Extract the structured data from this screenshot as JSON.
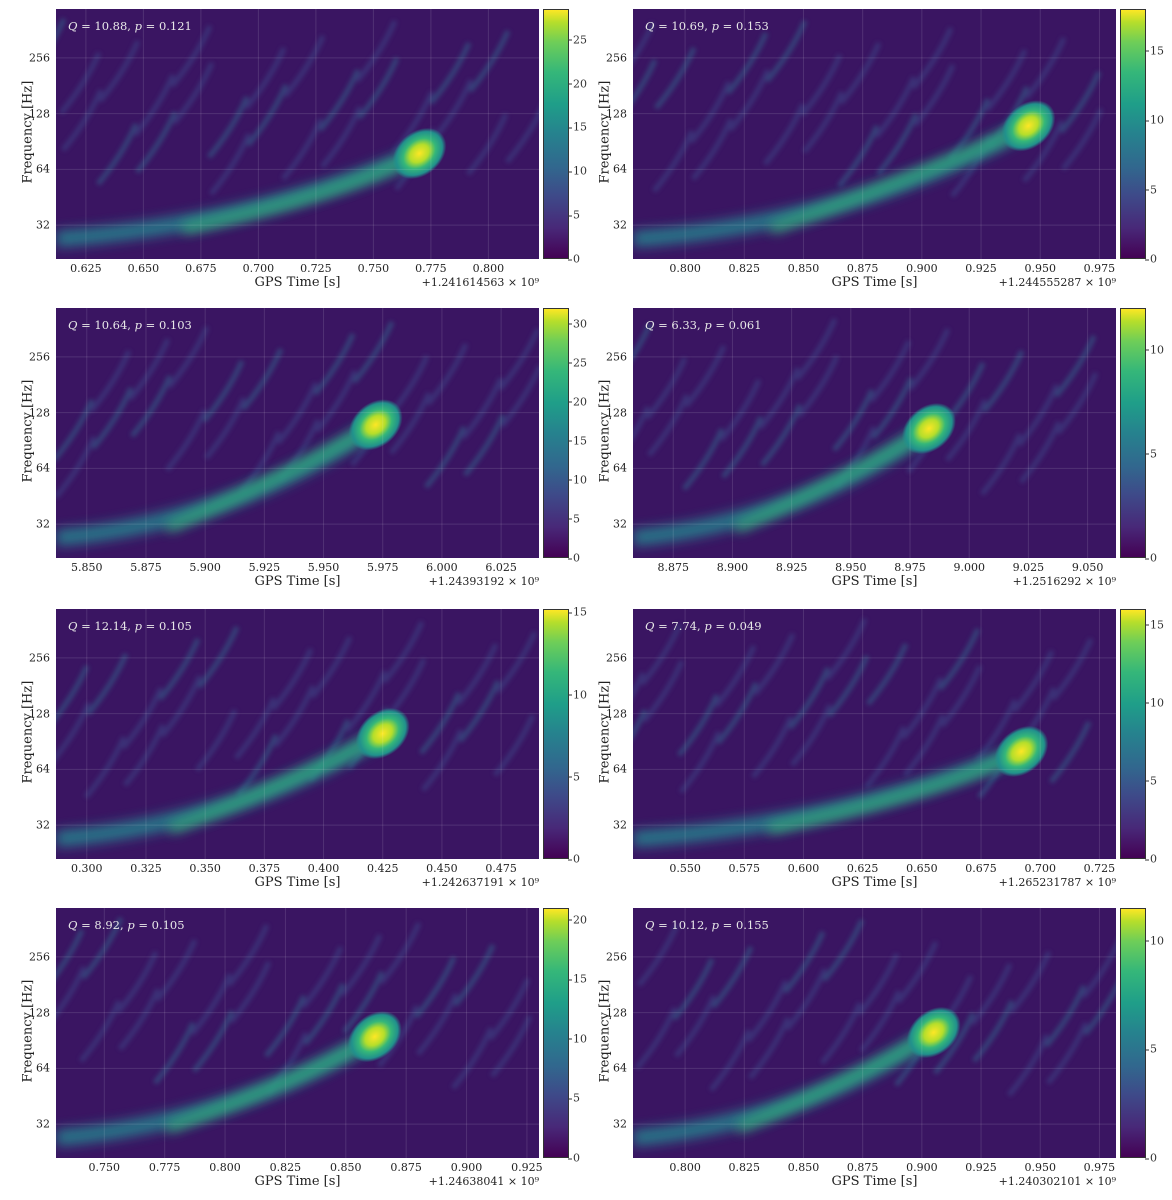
{
  "chart_data": [
    {
      "type": "heatmap",
      "annotation": {
        "Q": "10.88",
        "p": "0.121"
      },
      "xlabel": "GPS Time [s]",
      "ylabel": "Frequency [Hz]",
      "x_ticks": [
        "0.625",
        "0.650",
        "0.675",
        "0.700",
        "0.725",
        "0.750",
        "0.775",
        "0.800"
      ],
      "x_offset": "+1.241614563 × 10⁹",
      "y_ticks": [
        "256",
        "128",
        "64",
        "32"
      ],
      "xlim": [
        0.612,
        0.822
      ],
      "colorbar_ticks": [
        "0",
        "5",
        "10",
        "15",
        "20",
        "25"
      ],
      "colorbar_max": 28.5,
      "chirp": {
        "t_peak": 0.77,
        "f_peak": 78,
        "peak_value": 28
      },
      "grid": true
    },
    {
      "type": "heatmap",
      "annotation": {
        "Q": "10.69",
        "p": "0.153"
      },
      "xlabel": "GPS Time [s]",
      "ylabel": "Frequency [Hz]",
      "x_ticks": [
        "0.800",
        "0.825",
        "0.850",
        "0.875",
        "0.900",
        "0.925",
        "0.950",
        "0.975"
      ],
      "x_offset": "+1.244555287 × 10⁹",
      "y_ticks": [
        "256",
        "128",
        "64",
        "32"
      ],
      "xlim": [
        0.778,
        0.982
      ],
      "colorbar_ticks": [
        "0",
        "5",
        "10",
        "15"
      ],
      "colorbar_max": 18,
      "chirp": {
        "t_peak": 0.945,
        "f_peak": 110,
        "peak_value": 18
      },
      "grid": true
    },
    {
      "type": "heatmap",
      "annotation": {
        "Q": "10.64",
        "p": "0.103"
      },
      "xlabel": "GPS Time [s]",
      "ylabel": "Frequency [Hz]",
      "x_ticks": [
        "5.850",
        "5.875",
        "5.900",
        "5.925",
        "5.950",
        "5.975",
        "6.000",
        "6.025"
      ],
      "x_offset": "+1.24393192 × 10⁹",
      "y_ticks": [
        "256",
        "128",
        "64",
        "32"
      ],
      "xlim": [
        5.837,
        6.041
      ],
      "colorbar_ticks": [
        "0",
        "5",
        "10",
        "15",
        "20",
        "25",
        "30"
      ],
      "colorbar_max": 32,
      "chirp": {
        "t_peak": 5.972,
        "f_peak": 110,
        "peak_value": 32
      },
      "grid": true
    },
    {
      "type": "heatmap",
      "annotation": {
        "Q": "6.33",
        "p": "0.061"
      },
      "xlabel": "GPS Time [s]",
      "ylabel": "Frequency [Hz]",
      "x_ticks": [
        "8.875",
        "8.900",
        "8.925",
        "8.950",
        "8.975",
        "9.000",
        "9.025",
        "9.050"
      ],
      "x_offset": "+1.2516292 × 10⁹",
      "y_ticks": [
        "256",
        "128",
        "64",
        "32"
      ],
      "xlim": [
        8.858,
        9.062
      ],
      "colorbar_ticks": [
        "0",
        "5",
        "10"
      ],
      "colorbar_max": 12,
      "chirp": {
        "t_peak": 8.983,
        "f_peak": 105,
        "peak_value": 12
      },
      "grid": true
    },
    {
      "type": "heatmap",
      "annotation": {
        "Q": "12.14",
        "p": "0.105"
      },
      "xlabel": "GPS Time [s]",
      "ylabel": "Frequency [Hz]",
      "x_ticks": [
        "0.300",
        "0.325",
        "0.350",
        "0.375",
        "0.400",
        "0.425",
        "0.450",
        "0.475"
      ],
      "x_offset": "+1.242637191 × 10⁹",
      "y_ticks": [
        "256",
        "128",
        "64",
        "32"
      ],
      "xlim": [
        0.287,
        0.491
      ],
      "colorbar_ticks": [
        "0",
        "5",
        "10",
        "15"
      ],
      "colorbar_max": 15.2,
      "chirp": {
        "t_peak": 0.425,
        "f_peak": 100,
        "peak_value": 15
      },
      "grid": true
    },
    {
      "type": "heatmap",
      "annotation": {
        "Q": "7.74",
        "p": "0.049"
      },
      "xlabel": "GPS Time [s]",
      "ylabel": "Frequency [Hz]",
      "x_ticks": [
        "0.550",
        "0.575",
        "0.600",
        "0.625",
        "0.650",
        "0.675",
        "0.700",
        "0.725"
      ],
      "x_offset": "+1.265231787 × 10⁹",
      "y_ticks": [
        "256",
        "128",
        "64",
        "32"
      ],
      "xlim": [
        0.528,
        0.732
      ],
      "colorbar_ticks": [
        "0",
        "5",
        "10",
        "15"
      ],
      "colorbar_max": 16,
      "chirp": {
        "t_peak": 0.692,
        "f_peak": 80,
        "peak_value": 16
      },
      "grid": true
    },
    {
      "type": "heatmap",
      "annotation": {
        "Q": "8.92",
        "p": "0.105"
      },
      "xlabel": "GPS Time [s]",
      "ylabel": "Frequency [Hz]",
      "x_ticks": [
        "0.750",
        "0.775",
        "0.800",
        "0.825",
        "0.850",
        "0.875",
        "0.900",
        "0.925"
      ],
      "x_offset": "+1.24638041 × 10⁹",
      "y_ticks": [
        "256",
        "128",
        "64",
        "32"
      ],
      "xlim": [
        0.73,
        0.93
      ],
      "colorbar_ticks": [
        "0",
        "5",
        "10",
        "15",
        "20"
      ],
      "colorbar_max": 21,
      "chirp": {
        "t_peak": 0.862,
        "f_peak": 95,
        "peak_value": 21
      },
      "grid": true
    },
    {
      "type": "heatmap",
      "annotation": {
        "Q": "10.12",
        "p": "0.155"
      },
      "xlabel": "GPS Time [s]",
      "ylabel": "Frequency [Hz]",
      "x_ticks": [
        "0.800",
        "0.825",
        "0.850",
        "0.875",
        "0.900",
        "0.925",
        "0.950",
        "0.975"
      ],
      "x_offset": "+1.240302101 × 10⁹",
      "y_ticks": [
        "256",
        "128",
        "64",
        "32"
      ],
      "xlim": [
        0.778,
        0.982
      ],
      "colorbar_ticks": [
        "0",
        "5",
        "10"
      ],
      "colorbar_max": 11.5,
      "chirp": {
        "t_peak": 0.905,
        "f_peak": 100,
        "peak_value": 11.5
      },
      "grid": true
    }
  ]
}
